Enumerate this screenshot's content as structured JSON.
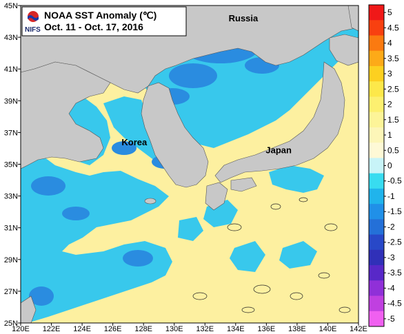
{
  "title": {
    "line1": "NOAA SST Anomaly (℃)",
    "line2": "Oct. 11 - Oct. 17, 2016",
    "logo_text": "NIFS"
  },
  "places": [
    {
      "name": "Russia",
      "lon": 134.5,
      "lat": 44.0
    },
    {
      "name": "Korea",
      "lon": 127.4,
      "lat": 36.2
    },
    {
      "name": "Japan",
      "lon": 136.8,
      "lat": 35.7
    }
  ],
  "axes": {
    "lon_min": 120,
    "lon_max": 142,
    "lat_min": 25,
    "lat_max": 45,
    "lon_ticks": [
      "120E",
      "122E",
      "124E",
      "126E",
      "128E",
      "130E",
      "132E",
      "134E",
      "136E",
      "138E",
      "140E",
      "142E"
    ],
    "lat_ticks": [
      "25N",
      "27N",
      "29N",
      "31N",
      "33N",
      "35N",
      "37N",
      "39N",
      "41N",
      "43N",
      "45N"
    ]
  },
  "colorbar": {
    "labels": [
      "5",
      "4.5",
      "4",
      "3.5",
      "3",
      "2.5",
      "2",
      "1.5",
      "1",
      "0.5",
      "0",
      "-0.5",
      "-1",
      "-1.5",
      "-2",
      "-2.5",
      "-3",
      "-3.5",
      "-4",
      "-4.5",
      "-5"
    ],
    "colors": [
      "#f01818",
      "#f84010",
      "#fb7a10",
      "#fdaa18",
      "#fdd020",
      "#fde84a",
      "#fdf070",
      "#fdf498",
      "#fdf6b8",
      "#fef9d6",
      "#c8f4f8",
      "#38dcf0",
      "#20b4ec",
      "#2090e8",
      "#2470d8",
      "#2848c8",
      "#3030b8",
      "#5828c8",
      "#9030d8",
      "#c040e0",
      "#f060f0"
    ]
  },
  "regions": {
    "land_color": "#c8c8c8",
    "warm_color": "#fdf0a0",
    "cool_color": "#38c8ec",
    "cold_color": "#2a8ce0"
  }
}
